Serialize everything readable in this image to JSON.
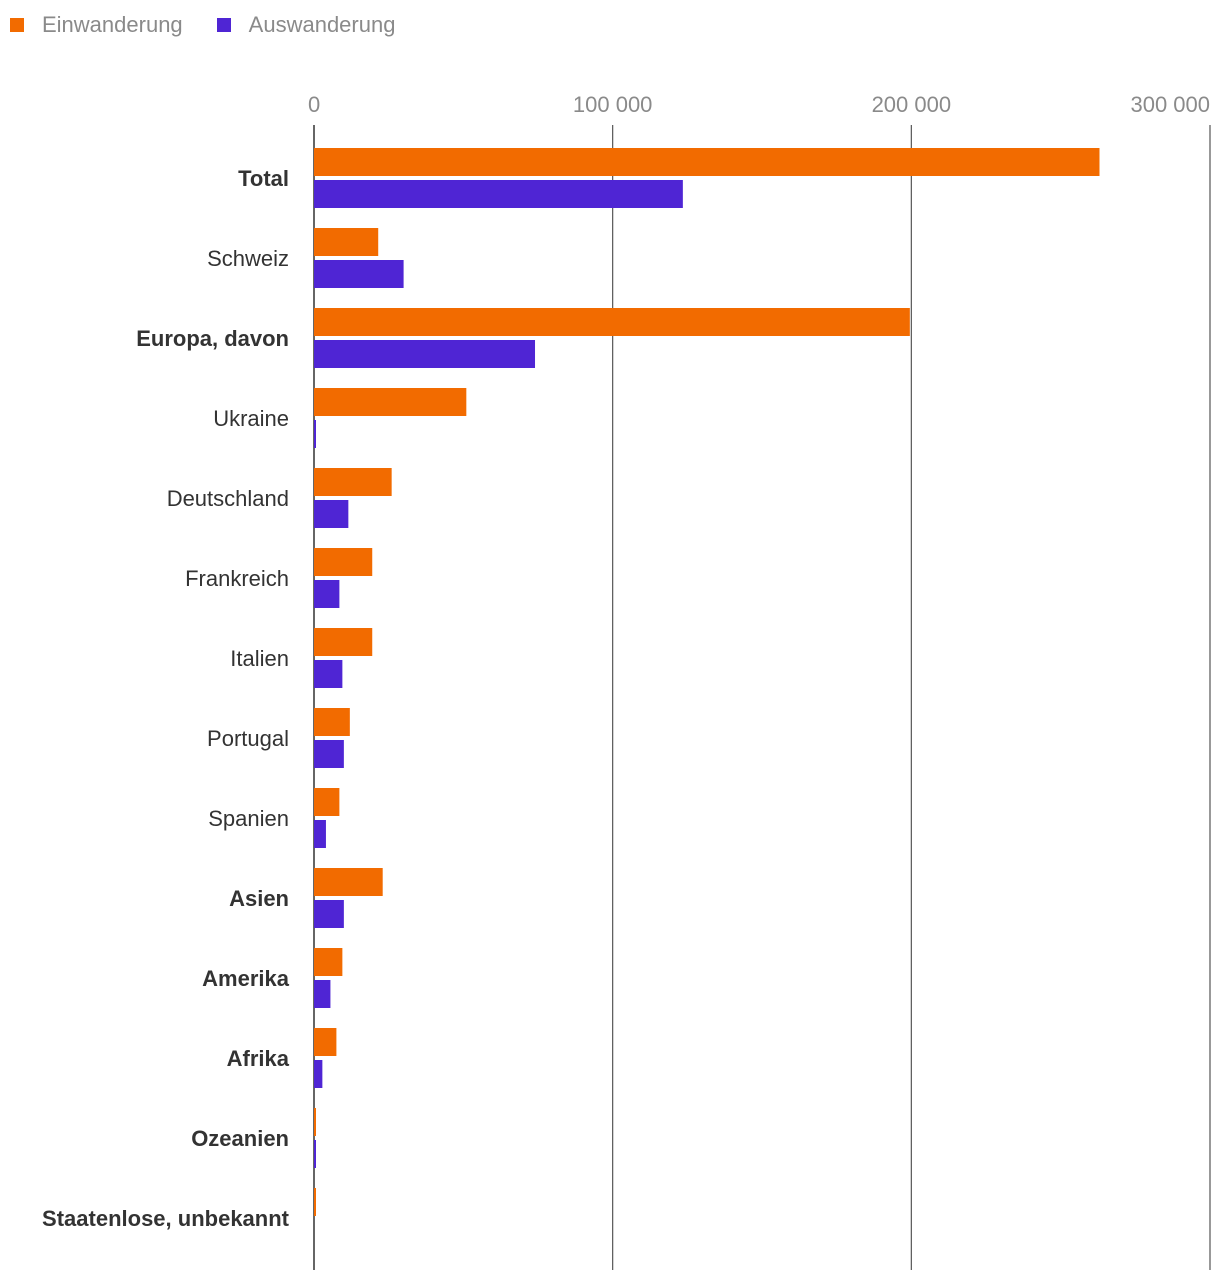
{
  "chart_data": {
    "type": "bar",
    "orientation": "horizontal",
    "categories": [
      "Total",
      "Schweiz",
      "Europa, davon",
      "Ukraine",
      "Deutschland",
      "Frankreich",
      "Italien",
      "Portugal",
      "Spanien",
      "Asien",
      "Amerika",
      "Afrika",
      "Ozeanien",
      "Staatenlose, unbekannt"
    ],
    "bold_categories": [
      "Total",
      "Europa, davon",
      "Asien",
      "Amerika",
      "Afrika",
      "Ozeanien",
      "Staatenlose, unbekannt"
    ],
    "series": [
      {
        "name": "Einwanderung",
        "color": "#f26b00",
        "values": [
          263000,
          21500,
          199500,
          51000,
          26000,
          19500,
          19500,
          12000,
          8500,
          23000,
          9500,
          7500,
          500,
          600
        ]
      },
      {
        "name": "Auswanderung",
        "color": "#4f25d4",
        "values": [
          123500,
          30000,
          74000,
          600,
          11500,
          8500,
          9500,
          10000,
          4000,
          10000,
          5500,
          2800,
          500,
          0
        ]
      }
    ],
    "xlim": [
      0,
      300000
    ],
    "ticks": [
      0,
      100000,
      200000,
      300000
    ],
    "tick_labels": [
      "0",
      "100 000",
      "200 000",
      "300 000"
    ],
    "legend_position": "top-left",
    "grid": true
  }
}
